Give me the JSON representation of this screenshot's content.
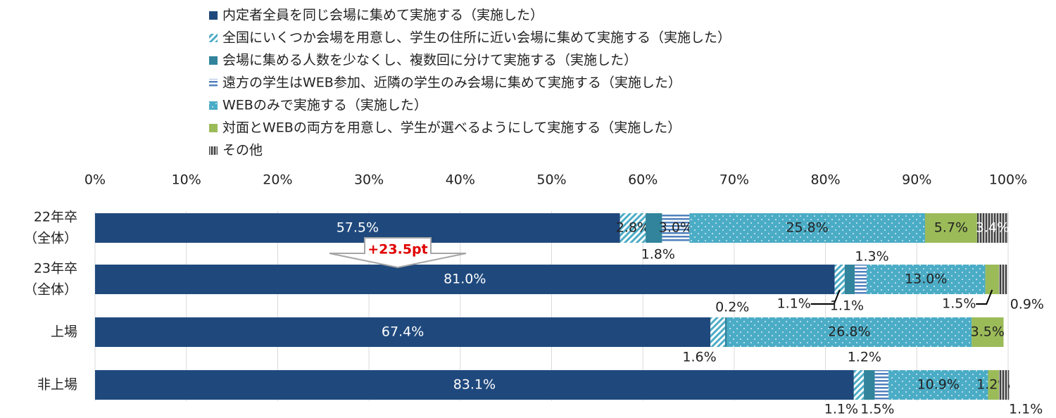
{
  "chart_data": {
    "type": "stacked-barh",
    "categories": [
      [
        "22年卒",
        "（全体）"
      ],
      [
        "23年卒",
        "（全体）"
      ],
      [
        "上場"
      ],
      [
        "非上場"
      ]
    ],
    "series": [
      {
        "name": "内定者全員を同じ会場に集めて実施する（実施した）",
        "color": "#1f497d",
        "pattern": "solid",
        "values": [
          57.5,
          81.0,
          67.4,
          83.1
        ],
        "value_labels": [
          "57.5%",
          "81.0%",
          "67.4%",
          "83.1%"
        ]
      },
      {
        "name": "全国にいくつか会場を用意し、学生の住所に近い会場に集めて実施する（実施した）",
        "color": "#4bacc6",
        "pattern": "diagonal",
        "values": [
          2.8,
          1.1,
          1.6,
          1.1
        ],
        "value_labels": [
          "2.8%",
          "1.1%",
          "1.6%",
          "1.1%"
        ]
      },
      {
        "name": "会場に集める人数を少なくし、複数回に分けて実施する（実施した）",
        "color": "#31849b",
        "pattern": "solid",
        "values": [
          1.8,
          1.1,
          0.2,
          1.2
        ],
        "value_labels": [
          "1.8%",
          "1.1%",
          "0.2%",
          "1.2%"
        ]
      },
      {
        "name": "遠方の学生はWEB参加、近隣の学生のみ会場に集めて実施する（実施した）",
        "color": "#4f81bd",
        "pattern": "horizontal",
        "values": [
          3.0,
          1.3,
          null,
          1.5
        ],
        "value_labels": [
          "3.0%",
          "1.3%",
          null,
          "1.5%"
        ]
      },
      {
        "name": "WEBのみで実施する（実施した）",
        "color": "#4bacc6",
        "pattern": "dots",
        "values": [
          25.8,
          13.0,
          26.8,
          10.9
        ],
        "value_labels": [
          "25.8%",
          "13.0%",
          "26.8%",
          "10.9%"
        ]
      },
      {
        "name": "対面とWEBの両方を用意し、学生が選べるようにして実施する（実施した）",
        "color": "#9bbb59",
        "pattern": "solid",
        "values": [
          5.7,
          1.5,
          3.5,
          1.2
        ],
        "value_labels": [
          "5.7%",
          "1.5%",
          "3.5%",
          "1.2%"
        ]
      },
      {
        "name": "その他",
        "color": "#595959",
        "pattern": "vertical",
        "values": [
          3.4,
          0.9,
          null,
          1.1
        ],
        "value_labels": [
          "3.4%",
          "0.9%",
          null,
          "1.1%"
        ]
      }
    ],
    "xlim": [
      0,
      100
    ],
    "xticks": [
      {
        "value": 0,
        "label": "0%"
      },
      {
        "value": 10,
        "label": "10%"
      },
      {
        "value": 20,
        "label": "20%"
      },
      {
        "value": 30,
        "label": "30%"
      },
      {
        "value": 40,
        "label": "40%"
      },
      {
        "value": 50,
        "label": "50%"
      },
      {
        "value": 60,
        "label": "60%"
      },
      {
        "value": 70,
        "label": "70%"
      },
      {
        "value": 80,
        "label": "80%"
      },
      {
        "value": 90,
        "label": "90%"
      },
      {
        "value": 100,
        "label": "100%"
      }
    ],
    "grid": true,
    "legend": "top",
    "annotation": "+23.5pt"
  }
}
